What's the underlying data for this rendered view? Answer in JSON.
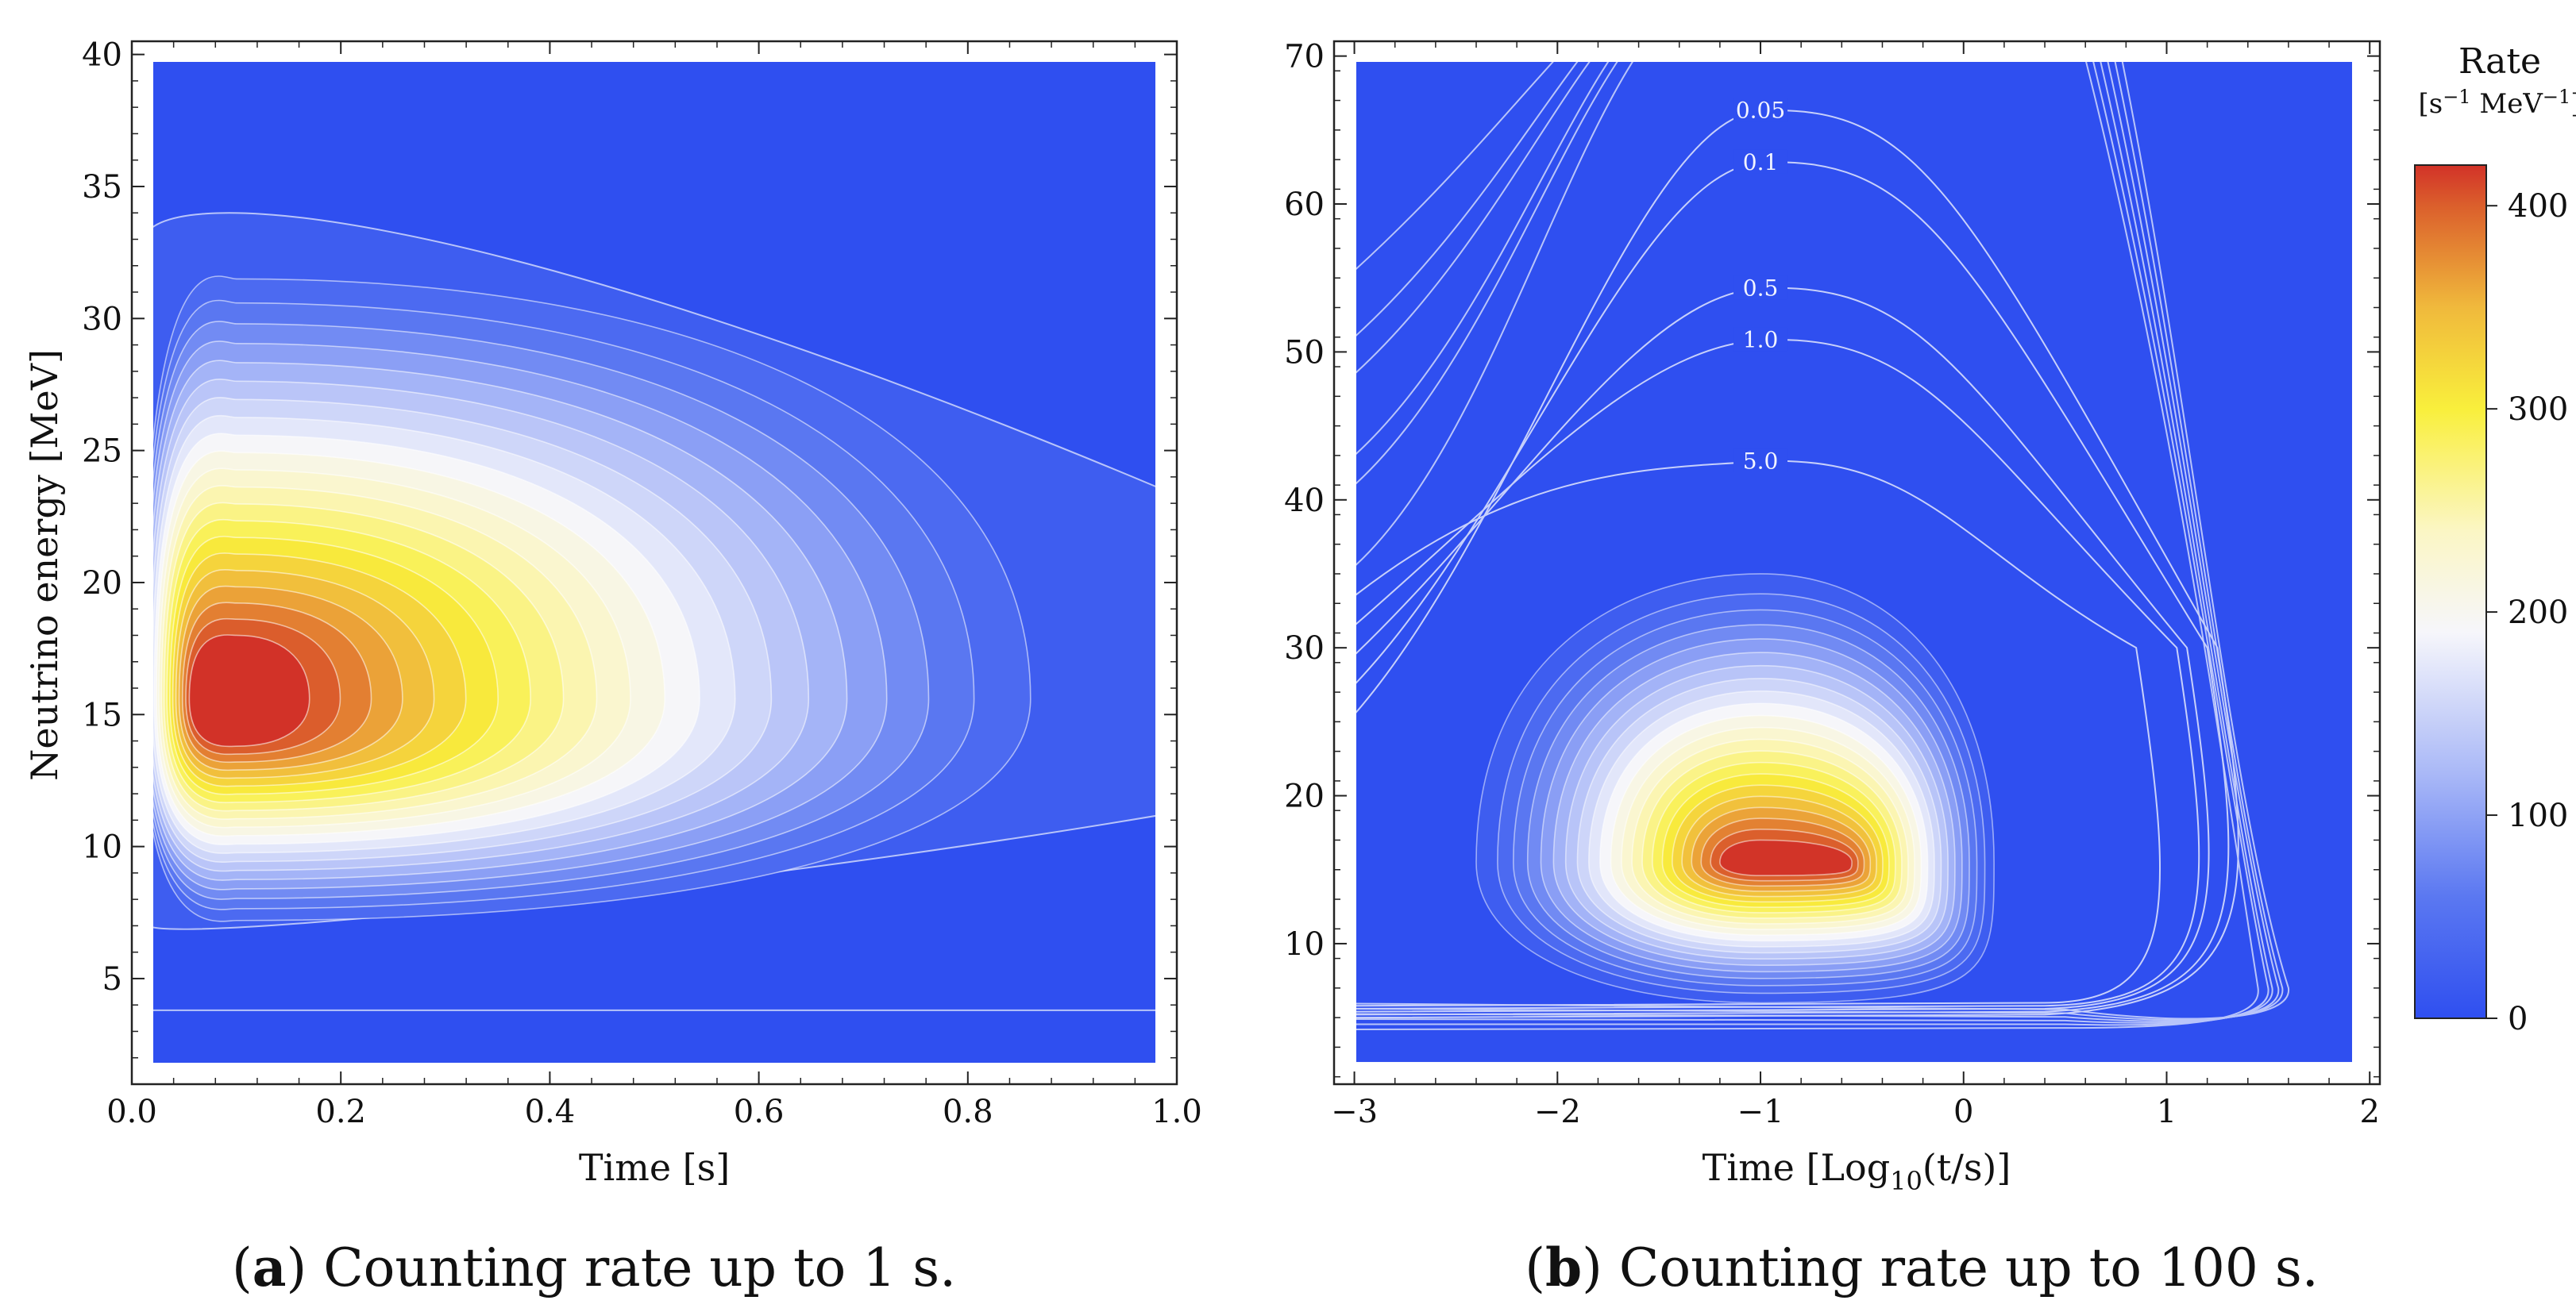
{
  "chart_data": [
    {
      "type": "contour",
      "panel": "a",
      "xlabel": "Time [s]",
      "ylabel": "Neutrino energy [MeV]",
      "xlim": [
        0.0,
        1.0
      ],
      "ylim": [
        1.0,
        40.5
      ],
      "data_yrange": [
        1.8,
        40.0
      ],
      "xticks": [
        0.0,
        0.2,
        0.4,
        0.6,
        0.8,
        1.0
      ],
      "xtick_labels": [
        "0.0",
        "0.2",
        "0.4",
        "0.6",
        "0.8",
        "1.0"
      ],
      "yticks": [
        5,
        10,
        15,
        20,
        25,
        30,
        35,
        40
      ],
      "ytick_labels": [
        "5",
        "10",
        "15",
        "20",
        "25",
        "30",
        "35",
        "40"
      ],
      "peak": {
        "time": 0.1,
        "energy": 15.6,
        "rate": 420
      },
      "caption_letter": "a",
      "caption_text": "Counting rate up to 1 s."
    },
    {
      "type": "contour",
      "panel": "b",
      "xlabel_main": "Time [Log",
      "xlabel_sub": "10",
      "xlabel_tail": "(t/s)]",
      "xlim": [
        -3.1,
        2.05
      ],
      "ylim": [
        0.5,
        71
      ],
      "data_xrange": [
        -3.0,
        2.0
      ],
      "data_yrange": [
        2.0,
        70.0
      ],
      "xticks": [
        -3,
        -2,
        -1,
        0,
        1,
        2
      ],
      "xtick_labels": [
        "−3",
        "−2",
        "−1",
        "0",
        "1",
        "2"
      ],
      "yticks": [
        10,
        20,
        30,
        40,
        50,
        60,
        70
      ],
      "ytick_labels": [
        "10",
        "20",
        "30",
        "40",
        "50",
        "60",
        "70"
      ],
      "peak": {
        "time": -1.0,
        "energy": 15.5,
        "rate": 420
      },
      "contour_labels": [
        {
          "text": "0.05",
          "x": -1.0,
          "y": 66.3
        },
        {
          "text": "0.1",
          "x": -1.0,
          "y": 62.8
        },
        {
          "text": "0.5",
          "x": -1.0,
          "y": 54.3
        },
        {
          "text": "1.0",
          "x": -1.0,
          "y": 50.8
        },
        {
          "text": "5.0",
          "x": -1.0,
          "y": 42.6
        }
      ],
      "caption_letter": "b",
      "caption_text": "Counting rate up to 100 s."
    }
  ],
  "colorbar": {
    "title": "Rate",
    "units_base": "[s",
    "units_exp1": "−1",
    "units_mid": " MeV",
    "units_exp2": "−1",
    "units_end": "]",
    "range": [
      0,
      420
    ],
    "ticks": [
      0,
      100,
      200,
      300,
      400
    ],
    "tick_labels": [
      "0",
      "100",
      "200",
      "300",
      "400"
    ],
    "stops": [
      {
        "v": 0,
        "color": "#2f4ff0"
      },
      {
        "v": 60,
        "color": "#5b78f1"
      },
      {
        "v": 120,
        "color": "#a9b8f7"
      },
      {
        "v": 190,
        "color": "#f6f6fb"
      },
      {
        "v": 240,
        "color": "#fbf6c4"
      },
      {
        "v": 300,
        "color": "#f9ef3c"
      },
      {
        "v": 350,
        "color": "#f0b93c"
      },
      {
        "v": 400,
        "color": "#db5f2c"
      },
      {
        "v": 420,
        "color": "#d23228"
      }
    ]
  }
}
